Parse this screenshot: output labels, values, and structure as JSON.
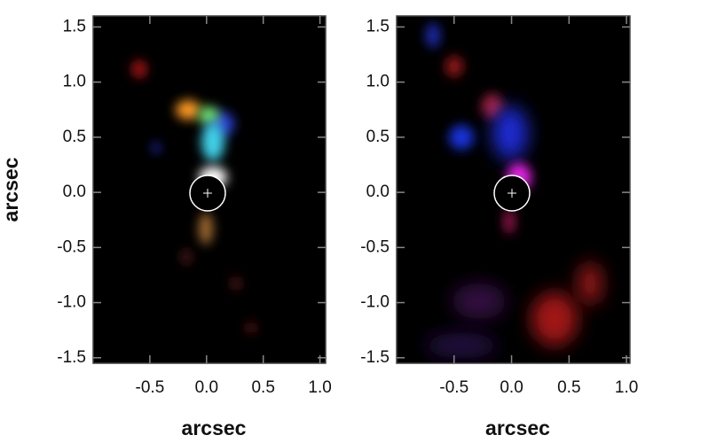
{
  "chart_data": [
    {
      "type": "image",
      "xlabel": "arcsec",
      "ylabel": "arcsec",
      "xlim": [
        -1.0,
        1.05
      ],
      "ylim": [
        -1.55,
        1.6
      ],
      "xticks": [
        -0.5,
        {
          "value": 0,
          "label": "0.0"
        },
        0.5,
        {
          "value": 1,
          "label": "1.0"
        }
      ],
      "yticks": [
        -1.5,
        {
          "value": -1,
          "label": "-1.0"
        },
        -0.5,
        {
          "value": 0,
          "label": "0.0"
        },
        0.5,
        {
          "value": 1,
          "label": "1.0"
        },
        1.5
      ]
    },
    {
      "type": "image",
      "xlabel": "arcsec",
      "xlim": [
        -1.0,
        1.03
      ],
      "ylim": [
        -1.55,
        1.6
      ],
      "xticks": [
        -0.5,
        {
          "value": 0,
          "label": "0.0"
        },
        0.5,
        {
          "value": 1,
          "label": "1.0"
        }
      ],
      "yticks": [
        -1.5,
        {
          "value": -1,
          "label": "-1.0"
        },
        -0.5,
        {
          "value": 0,
          "label": "0.0"
        },
        0.5,
        {
          "value": 1,
          "label": "1.0"
        },
        1.5
      ]
    }
  ]
}
